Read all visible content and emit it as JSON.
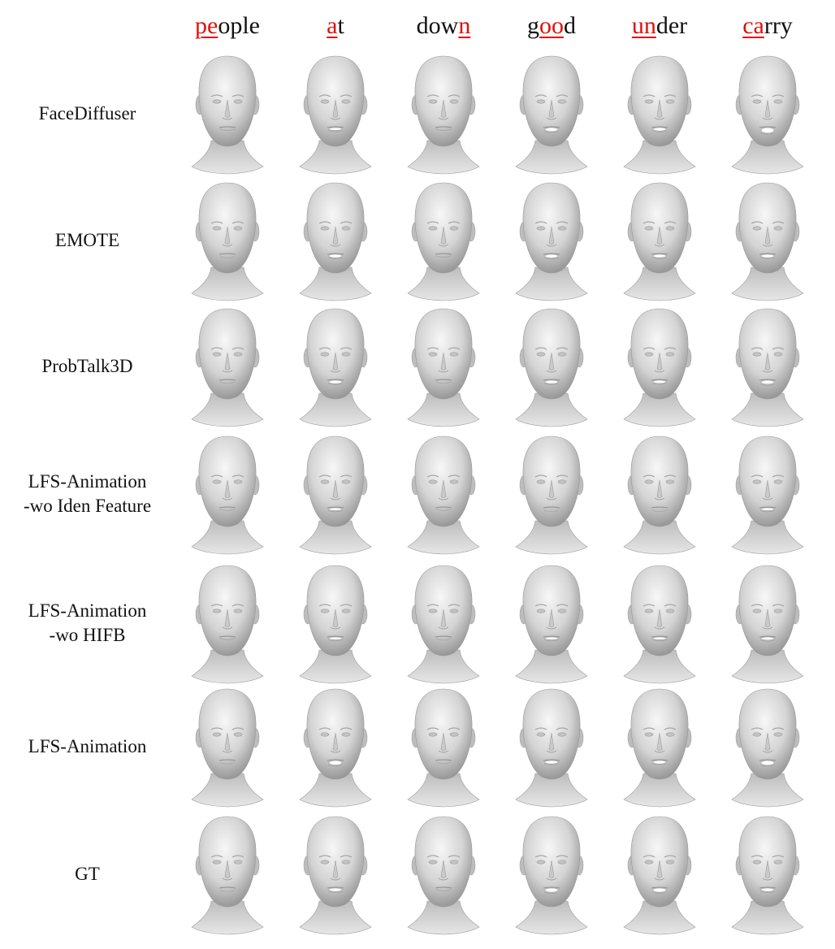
{
  "words": [
    {
      "highlight": "pe",
      "rest": "ople",
      "pre": ""
    },
    {
      "highlight": "a",
      "rest": "t",
      "pre": ""
    },
    {
      "pre": "dow",
      "highlight": "n",
      "rest": ""
    },
    {
      "pre": "g",
      "highlight": "oo",
      "rest": "d"
    },
    {
      "pre": "",
      "highlight": "un",
      "rest": "der"
    },
    {
      "pre": "",
      "highlight": "ca",
      "rest": "rry"
    }
  ],
  "rows": [
    {
      "label_lines": [
        "FaceDiffuser"
      ]
    },
    {
      "label_lines": [
        "EMOTE"
      ]
    },
    {
      "label_lines": [
        "ProbTalk3D"
      ]
    },
    {
      "label_lines": [
        "LFS-Animation",
        "-wo Iden Feature"
      ]
    },
    {
      "label_lines": [
        "LFS-Animation",
        "-wo HIFB"
      ]
    },
    {
      "label_lines": [
        "LFS-Animation"
      ]
    },
    {
      "label_lines": [
        "GT"
      ]
    }
  ],
  "mouth_openness": [
    [
      0.15,
      0.35,
      0.15,
      0.55,
      0.45,
      0.85
    ],
    [
      0.25,
      0.45,
      0.15,
      0.5,
      0.45,
      0.45
    ],
    [
      0.2,
      0.45,
      0.2,
      0.45,
      0.4,
      0.55
    ],
    [
      0.15,
      0.35,
      0.15,
      0.3,
      0.3,
      0.35
    ],
    [
      0.15,
      0.35,
      0.2,
      0.35,
      0.35,
      0.4
    ],
    [
      0.25,
      0.65,
      0.2,
      0.45,
      0.45,
      0.7
    ],
    [
      0.25,
      0.45,
      0.15,
      0.6,
      0.6,
      0.45
    ]
  ],
  "colors": {
    "highlight": "#e0100d",
    "text": "#111111",
    "head_light": "#f2f2f2",
    "head_dark": "#8c8c8c"
  }
}
